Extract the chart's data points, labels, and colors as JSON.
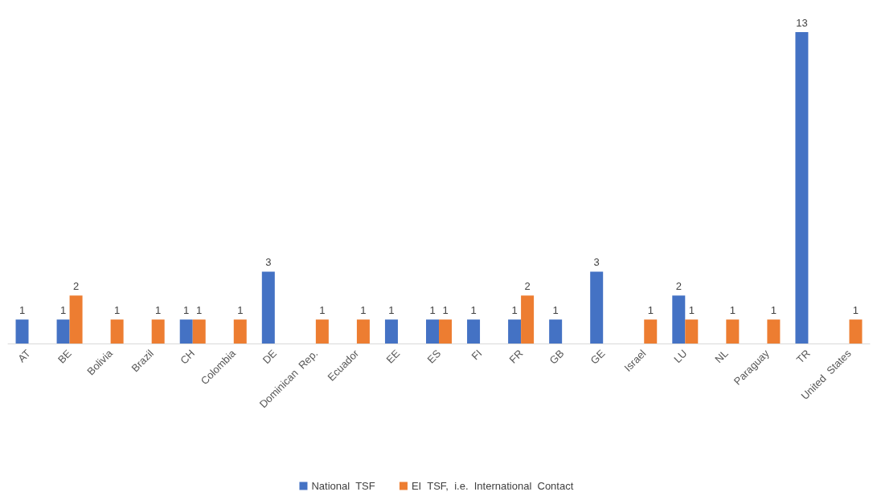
{
  "chart_data": {
    "type": "bar",
    "categories": [
      "AT",
      "BE",
      "Bolivia",
      "Brazil",
      "CH",
      "Colombia",
      "DE",
      "Dominican  Rep.",
      "Ecuador",
      "EE",
      "ES",
      "FI",
      "FR",
      "GB",
      "GE",
      "Israel",
      "LU",
      "NL",
      "Paraguay",
      "TR",
      "United  States"
    ],
    "series": [
      {
        "name": "National  TSF",
        "color": "#4472c4",
        "values": [
          1,
          1,
          null,
          null,
          1,
          null,
          3,
          null,
          null,
          1,
          1,
          1,
          1,
          1,
          3,
          null,
          2,
          null,
          null,
          13,
          null
        ]
      },
      {
        "name": "EI  TSF,  i.e.  International  Contact",
        "color": "#ed7d31",
        "values": [
          null,
          2,
          1,
          1,
          1,
          1,
          null,
          1,
          1,
          null,
          1,
          null,
          2,
          null,
          null,
          1,
          1,
          1,
          1,
          null,
          1
        ]
      }
    ],
    "data_labels": true,
    "grid": false,
    "legend": "bottom"
  }
}
